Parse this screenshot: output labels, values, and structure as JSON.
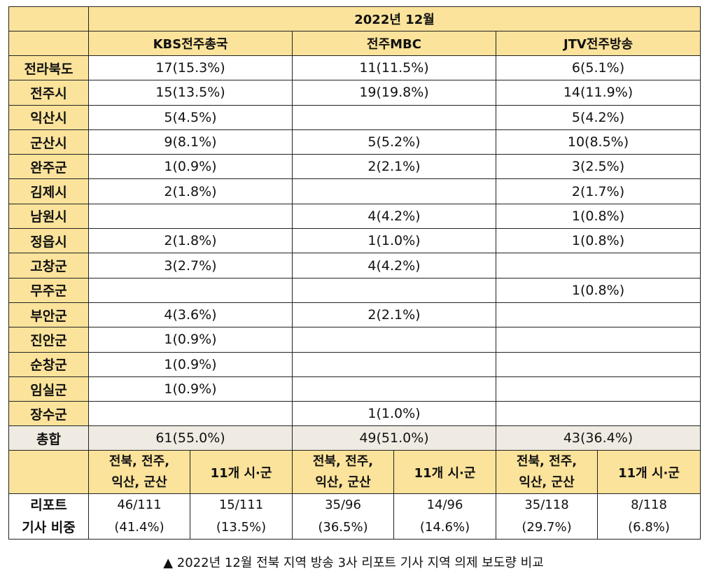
{
  "table": {
    "period": "2022년 12월",
    "stations": [
      "KBS전주총국",
      "전주MBC",
      "JTV전주방송"
    ],
    "rows": [
      {
        "region": "전라북도",
        "values": [
          "17(15.3%)",
          "11(11.5%)",
          "6(5.1%)"
        ]
      },
      {
        "region": "전주시",
        "values": [
          "15(13.5%)",
          "19(19.8%)",
          "14(11.9%)"
        ]
      },
      {
        "region": "익산시",
        "values": [
          "5(4.5%)",
          "",
          "5(4.2%)"
        ]
      },
      {
        "region": "군산시",
        "values": [
          "9(8.1%)",
          "5(5.2%)",
          "10(8.5%)"
        ]
      },
      {
        "region": "완주군",
        "values": [
          "1(0.9%)",
          "2(2.1%)",
          "3(2.5%)"
        ]
      },
      {
        "region": "김제시",
        "values": [
          "2(1.8%)",
          "",
          "2(1.7%)"
        ]
      },
      {
        "region": "남원시",
        "values": [
          "",
          "4(4.2%)",
          "1(0.8%)"
        ]
      },
      {
        "region": "정읍시",
        "values": [
          "2(1.8%)",
          "1(1.0%)",
          "1(0.8%)"
        ]
      },
      {
        "region": "고창군",
        "values": [
          "3(2.7%)",
          "4(4.2%)",
          ""
        ]
      },
      {
        "region": "무주군",
        "values": [
          "",
          "",
          "1(0.8%)"
        ]
      },
      {
        "region": "부안군",
        "values": [
          "4(3.6%)",
          "2(2.1%)",
          ""
        ]
      },
      {
        "region": "진안군",
        "values": [
          "1(0.9%)",
          "",
          ""
        ]
      },
      {
        "region": "순창군",
        "values": [
          "1(0.9%)",
          "",
          ""
        ]
      },
      {
        "region": "임실군",
        "values": [
          "1(0.9%)",
          "",
          ""
        ]
      },
      {
        "region": "장수군",
        "values": [
          "",
          "1(1.0%)",
          ""
        ]
      }
    ],
    "total": {
      "label": "총합",
      "values": [
        "61(55.0%)",
        "49(51.0%)",
        "43(36.4%)"
      ]
    },
    "subheader": {
      "major_line1": "전북, 전주,",
      "major_line2": "익산, 군산",
      "others": "11개 시·군"
    },
    "ratio": {
      "label_line1": "리포트",
      "label_line2": "기사 비중",
      "cells": [
        {
          "count": "46/111",
          "pct": "(41.4%)"
        },
        {
          "count": "15/111",
          "pct": "(13.5%)"
        },
        {
          "count": "35/96",
          "pct": "(36.5%)"
        },
        {
          "count": "14/96",
          "pct": "(14.6%)"
        },
        {
          "count": "35/118",
          "pct": "(29.7%)"
        },
        {
          "count": "8/118",
          "pct": "(6.8%)"
        }
      ]
    }
  },
  "caption": "▲ 2022년 12월 전북 지역 방송 3사 리포트 기사 지역 의제 보도량 비교"
}
